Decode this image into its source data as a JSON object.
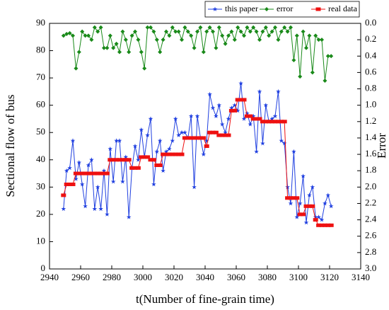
{
  "chart_data": {
    "type": "line",
    "xlabel": "t(Number of fine-grain time)",
    "ylabel": "Sectional flow of bus",
    "y2label": "Error",
    "x": [
      2949,
      2951,
      2953,
      2955,
      2957,
      2959,
      2961,
      2963,
      2965,
      2967,
      2969,
      2971,
      2973,
      2975,
      2977,
      2979,
      2981,
      2983,
      2985,
      2987,
      2989,
      2991,
      2993,
      2995,
      2997,
      2999,
      3001,
      3003,
      3005,
      3007,
      3009,
      3011,
      3013,
      3015,
      3017,
      3019,
      3021,
      3023,
      3025,
      3027,
      3029,
      3031,
      3033,
      3035,
      3037,
      3039,
      3041,
      3043,
      3045,
      3047,
      3049,
      3051,
      3053,
      3055,
      3057,
      3059,
      3061,
      3063,
      3065,
      3067,
      3069,
      3071,
      3073,
      3075,
      3077,
      3079,
      3081,
      3083,
      3085,
      3087,
      3089,
      3091,
      3093,
      3095,
      3097,
      3099,
      3101,
      3103,
      3105,
      3107,
      3109,
      3111,
      3113,
      3115,
      3117,
      3119,
      3121
    ],
    "series": [
      {
        "name": "this paper",
        "color": "#1f3fe0",
        "marker": "star",
        "values": [
          22,
          36,
          37,
          47,
          33,
          39,
          31,
          23,
          38,
          40,
          22,
          30,
          22,
          36,
          20,
          44,
          32,
          47,
          47,
          32,
          41,
          19,
          37,
          45,
          40,
          51,
          41,
          49,
          55,
          31,
          43,
          47,
          36,
          43,
          44,
          47,
          55,
          49,
          50,
          50,
          48,
          56,
          30,
          56,
          48,
          42,
          47,
          64,
          59,
          56,
          60,
          53,
          50,
          55,
          59,
          60,
          58,
          68,
          55,
          57,
          53,
          56,
          43,
          65,
          46,
          60,
          54,
          55,
          56,
          65,
          47,
          46,
          30,
          24,
          43,
          19,
          24,
          34,
          17,
          27,
          30,
          19,
          19,
          18,
          24,
          27,
          23
        ]
      },
      {
        "name": "error",
        "color": "#1a8a1a",
        "marker": "diamond",
        "axis": "y2",
        "values": [
          0.15,
          0.13,
          0.12,
          0.15,
          0.55,
          0.35,
          0.1,
          0.15,
          0.15,
          0.2,
          0.05,
          0.1,
          0.05,
          0.3,
          0.3,
          0.15,
          0.3,
          0.25,
          0.35,
          0.1,
          0.2,
          0.35,
          0.15,
          0.1,
          0.2,
          0.35,
          0.55,
          0.05,
          0.05,
          0.1,
          0.2,
          0.35,
          0.2,
          0.1,
          0.15,
          0.05,
          0.1,
          0.1,
          0.2,
          0.05,
          0.1,
          0.15,
          0.3,
          0.1,
          0.05,
          0.35,
          0.1,
          0.05,
          0.1,
          0.3,
          0.05,
          0.15,
          0.25,
          0.15,
          0.1,
          0.2,
          0.05,
          0.1,
          0.15,
          0.05,
          0.1,
          0.05,
          0.1,
          0.2,
          0.1,
          0.05,
          0.15,
          0.1,
          0.05,
          0.2,
          0.1,
          0.05,
          0.1,
          0.05,
          0.45,
          0.15,
          0.65,
          0.1,
          0.3,
          0.15,
          0.6,
          0.15,
          0.2,
          0.2,
          0.7,
          0.4,
          0.4
        ]
      },
      {
        "name": "real data",
        "color": "#ee1111",
        "marker": "square",
        "values": [
          27,
          31,
          31,
          31,
          35,
          35,
          35,
          35,
          35,
          35,
          35,
          35,
          35,
          35,
          35,
          40,
          40,
          40,
          40,
          40,
          40,
          40,
          37,
          37,
          37,
          41,
          41,
          41,
          40,
          40,
          38,
          38,
          42,
          42,
          42,
          42,
          42,
          42,
          42,
          48,
          48,
          48,
          48,
          48,
          48,
          48,
          45,
          50,
          50,
          50,
          49,
          49,
          49,
          49,
          58,
          58,
          62,
          62,
          62,
          56,
          56,
          55,
          55,
          55,
          54,
          54,
          54,
          54,
          54,
          54,
          54,
          54,
          26,
          26,
          26,
          26,
          20,
          20,
          23,
          23,
          23,
          18,
          16,
          16,
          16,
          16,
          16
        ]
      }
    ],
    "xlim": [
      2940,
      3140
    ],
    "xticks": [
      2940,
      2960,
      2980,
      3000,
      3020,
      3040,
      3060,
      3080,
      3100,
      3120,
      3140
    ],
    "ylim": [
      0,
      90
    ],
    "yticks": [
      0,
      10,
      20,
      30,
      40,
      50,
      60,
      70,
      80,
      90
    ],
    "y2lim": [
      3,
      0
    ],
    "y2ticks": [
      {
        "value": 0,
        "label": "0.0"
      },
      0.2,
      0.4,
      0.6,
      0.8,
      {
        "value": 1,
        "label": "1.0"
      },
      1.2,
      1.4,
      1.6,
      1.8,
      {
        "value": 2,
        "label": "2.0"
      },
      2.2,
      2.4,
      2.6,
      2.8,
      {
        "value": 3,
        "label": "3.0"
      }
    ],
    "legend": "top-right"
  }
}
